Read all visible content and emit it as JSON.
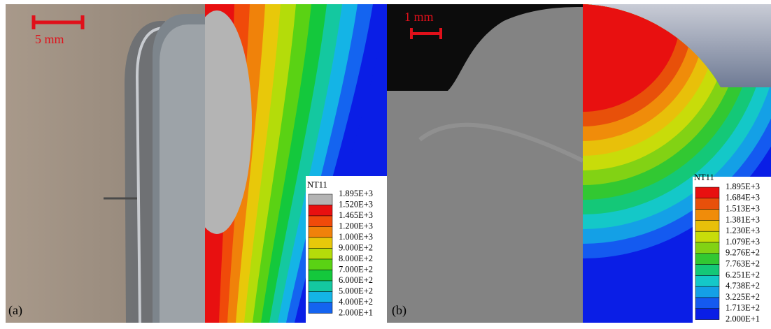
{
  "panel_a": {
    "label": "(a)",
    "scale_bar": "5 mm",
    "legend": {
      "title": "NT11",
      "values": [
        "1.895E+3",
        "1.520E+3",
        "1.465E+3",
        "1.200E+3",
        "1.000E+3",
        "9.000E+2",
        "8.000E+2",
        "7.000E+2",
        "6.000E+2",
        "5.000E+2",
        "4.000E+2",
        "2.000E+1"
      ]
    }
  },
  "panel_b": {
    "label": "(b)",
    "scale_bar": "1 mm",
    "legend": {
      "title": "NT11",
      "values": [
        "1.895E+3",
        "1.684E+3",
        "1.513E+3",
        "1.381E+3",
        "1.230E+3",
        "1.079E+3",
        "9.276E+2",
        "7.763E+2",
        "6.251E+2",
        "4.738E+2",
        "3.225E+2",
        "1.713E+2",
        "2.000E+1"
      ]
    }
  }
}
